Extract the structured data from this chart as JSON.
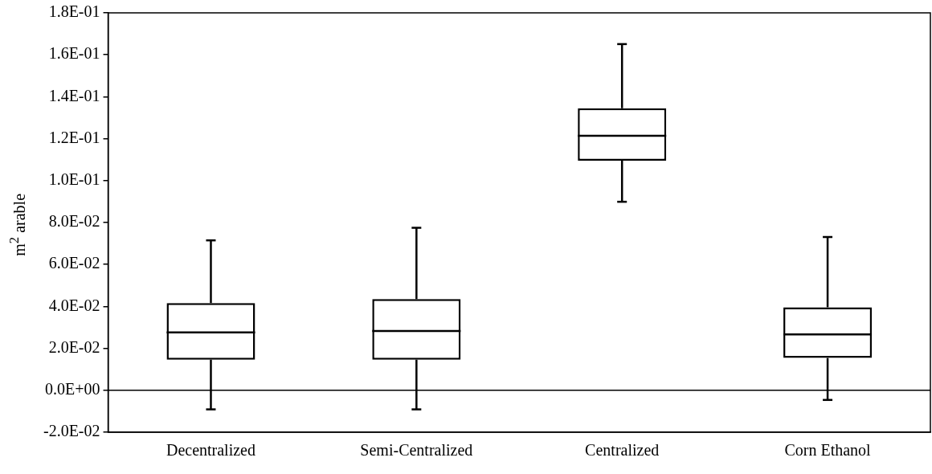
{
  "chart_data": {
    "type": "box",
    "ylabel": "m$^{2}$ arable",
    "categories": [
      "Decentralized",
      "Semi-Centralized",
      "Centralized",
      "Corn Ethanol"
    ],
    "boxes": [
      {
        "low": -0.0091,
        "q1": 0.0146,
        "median": 0.0276,
        "q3": 0.0416,
        "high": 0.0715
      },
      {
        "low": -0.0091,
        "q1": 0.0146,
        "median": 0.0283,
        "q3": 0.0435,
        "high": 0.0775
      },
      {
        "low": 0.0899,
        "q1": 0.1095,
        "median": 0.1214,
        "q3": 0.1345,
        "high": 0.1651
      },
      {
        "low": -0.0046,
        "q1": 0.0154,
        "median": 0.0266,
        "q3": 0.0396,
        "high": 0.0731
      }
    ],
    "color": "#000000",
    "ylim": [
      -0.02,
      0.18
    ],
    "yticks": [
      {
        "value": -0.02,
        "label": "-2.0E-02"
      },
      {
        "value": 0,
        "label": "0.0E+00"
      },
      {
        "value": 0.02,
        "label": "2.0E-02"
      },
      {
        "value": 0.04,
        "label": "4.0E-02"
      },
      {
        "value": 0.06,
        "label": "6.0E-02"
      },
      {
        "value": 0.08,
        "label": "8.0E-02"
      },
      {
        "value": 0.1,
        "label": "1.0E-01"
      },
      {
        "value": 0.12,
        "label": "1.2E-01"
      },
      {
        "value": 0.14,
        "label": "1.4E-01"
      },
      {
        "value": 0.16,
        "label": "1.6E-01"
      },
      {
        "value": 0.18,
        "label": "1.8E-01"
      }
    ],
    "ref_lines": [
      {
        "axis": "y",
        "value": 0,
        "color": "#000000"
      }
    ],
    "grid": false,
    "legend": false
  }
}
